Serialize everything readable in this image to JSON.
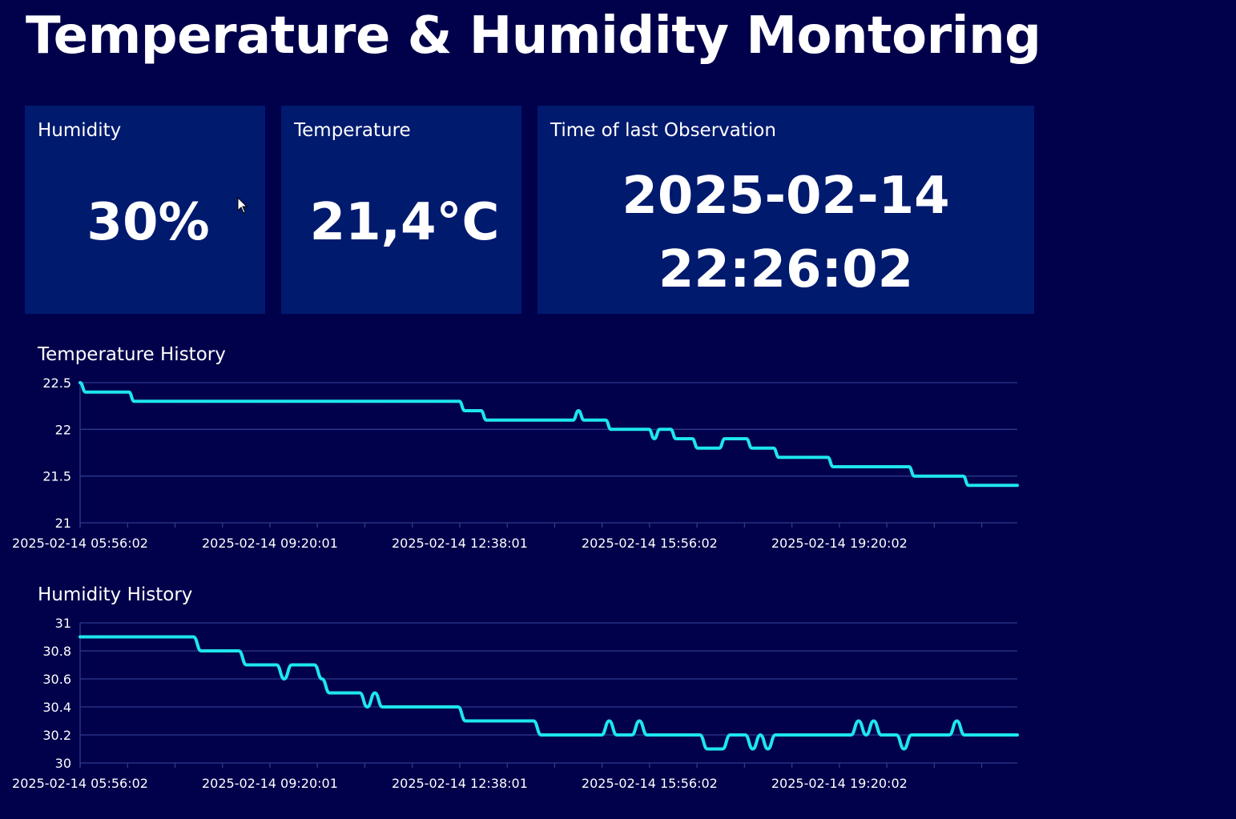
{
  "app": {
    "title": "Temperature & Humidity Montoring"
  },
  "cards": {
    "humidity": {
      "label": "Humidity",
      "value": "30%"
    },
    "temperature": {
      "label": "Temperature",
      "value": "21,4°C"
    },
    "last_observation": {
      "label": "Time of last Observation",
      "date": "2025-02-14",
      "time": "22:26:02"
    }
  },
  "colors": {
    "background": "#01004b",
    "card": "#001a6e",
    "line": "#1ee6ee",
    "grid": "#2d3a8c",
    "text": "#ffffff"
  },
  "chart_data": [
    {
      "type": "line",
      "title": "Temperature History",
      "x_tick_labels": [
        "2025-02-14 05:56:02",
        "2025-02-14 09:20:01",
        "2025-02-14 12:38:01",
        "2025-02-14 15:56:02",
        "2025-02-14 19:20:02"
      ],
      "ylim": [
        21,
        22.5
      ],
      "y_ticks": [
        21,
        21.5,
        22,
        22.5
      ],
      "y_tick_labels": [
        "21",
        "21.5",
        "22",
        "22.5"
      ],
      "grid": true,
      "series": [
        {
          "values": [
            22.5,
            22.4,
            22.4,
            22.4,
            22.4,
            22.4,
            22.4,
            22.4,
            22.4,
            22.4,
            22.3,
            22.3,
            22.3,
            22.3,
            22.3,
            22.3,
            22.3,
            22.3,
            22.3,
            22.3,
            22.3,
            22.3,
            22.3,
            22.3,
            22.3,
            22.3,
            22.3,
            22.3,
            22.3,
            22.3,
            22.3,
            22.3,
            22.3,
            22.3,
            22.3,
            22.3,
            22.3,
            22.3,
            22.3,
            22.3,
            22.3,
            22.3,
            22.3,
            22.3,
            22.3,
            22.3,
            22.3,
            22.3,
            22.3,
            22.3,
            22.3,
            22.3,
            22.3,
            22.3,
            22.3,
            22.3,
            22.3,
            22.3,
            22.3,
            22.3,
            22.3,
            22.3,
            22.3,
            22.3,
            22.3,
            22.3,
            22.3,
            22.3,
            22.3,
            22.3,
            22.3,
            22.2,
            22.2,
            22.2,
            22.2,
            22.1,
            22.1,
            22.1,
            22.1,
            22.1,
            22.1,
            22.1,
            22.1,
            22.1,
            22.1,
            22.1,
            22.1,
            22.1,
            22.1,
            22.1,
            22.1,
            22.1,
            22.2,
            22.1,
            22.1,
            22.1,
            22.1,
            22.1,
            22.0,
            22.0,
            22.0,
            22.0,
            22.0,
            22.0,
            22.0,
            22.0,
            21.9,
            22.0,
            22.0,
            22.0,
            21.9,
            21.9,
            21.9,
            21.9,
            21.8,
            21.8,
            21.8,
            21.8,
            21.8,
            21.9,
            21.9,
            21.9,
            21.9,
            21.9,
            21.8,
            21.8,
            21.8,
            21.8,
            21.8,
            21.7,
            21.7,
            21.7,
            21.7,
            21.7,
            21.7,
            21.7,
            21.7,
            21.7,
            21.7,
            21.6,
            21.6,
            21.6,
            21.6,
            21.6,
            21.6,
            21.6,
            21.6,
            21.6,
            21.6,
            21.6,
            21.6,
            21.6,
            21.6,
            21.6,
            21.5,
            21.5,
            21.5,
            21.5,
            21.5,
            21.5,
            21.5,
            21.5,
            21.5,
            21.5,
            21.4,
            21.4,
            21.4,
            21.4,
            21.4,
            21.4,
            21.4,
            21.4,
            21.4,
            21.4
          ]
        }
      ]
    },
    {
      "type": "line",
      "title": "Humidity History",
      "x_tick_labels": [
        "2025-02-14 05:56:02",
        "2025-02-14 09:20:01",
        "2025-02-14 12:38:01",
        "2025-02-14 15:56:02",
        "2025-02-14 19:20:02"
      ],
      "ylim": [
        30,
        31
      ],
      "y_ticks": [
        30,
        30.2,
        30.4,
        30.6,
        30.8,
        31
      ],
      "y_tick_labels": [
        "30",
        "30.2",
        "30.4",
        "30.6",
        "30.8",
        "31"
      ],
      "grid": true,
      "series": [
        {
          "values": [
            30.9,
            30.9,
            30.9,
            30.9,
            30.9,
            30.9,
            30.9,
            30.9,
            30.9,
            30.9,
            30.9,
            30.9,
            30.9,
            30.9,
            30.9,
            30.9,
            30.8,
            30.8,
            30.8,
            30.8,
            30.8,
            30.8,
            30.7,
            30.7,
            30.7,
            30.7,
            30.7,
            30.6,
            30.7,
            30.7,
            30.7,
            30.7,
            30.6,
            30.5,
            30.5,
            30.5,
            30.5,
            30.5,
            30.4,
            30.5,
            30.4,
            30.4,
            30.4,
            30.4,
            30.4,
            30.4,
            30.4,
            30.4,
            30.4,
            30.4,
            30.4,
            30.3,
            30.3,
            30.3,
            30.3,
            30.3,
            30.3,
            30.3,
            30.3,
            30.3,
            30.3,
            30.2,
            30.2,
            30.2,
            30.2,
            30.2,
            30.2,
            30.2,
            30.2,
            30.2,
            30.3,
            30.2,
            30.2,
            30.2,
            30.3,
            30.2,
            30.2,
            30.2,
            30.2,
            30.2,
            30.2,
            30.2,
            30.2,
            30.1,
            30.1,
            30.1,
            30.2,
            30.2,
            30.2,
            30.1,
            30.2,
            30.1,
            30.2,
            30.2,
            30.2,
            30.2,
            30.2,
            30.2,
            30.2,
            30.2,
            30.2,
            30.2,
            30.2,
            30.3,
            30.2,
            30.3,
            30.2,
            30.2,
            30.2,
            30.1,
            30.2,
            30.2,
            30.2,
            30.2,
            30.2,
            30.2,
            30.3,
            30.2,
            30.2,
            30.2,
            30.2,
            30.2,
            30.2,
            30.2,
            30.2
          ]
        }
      ]
    }
  ]
}
